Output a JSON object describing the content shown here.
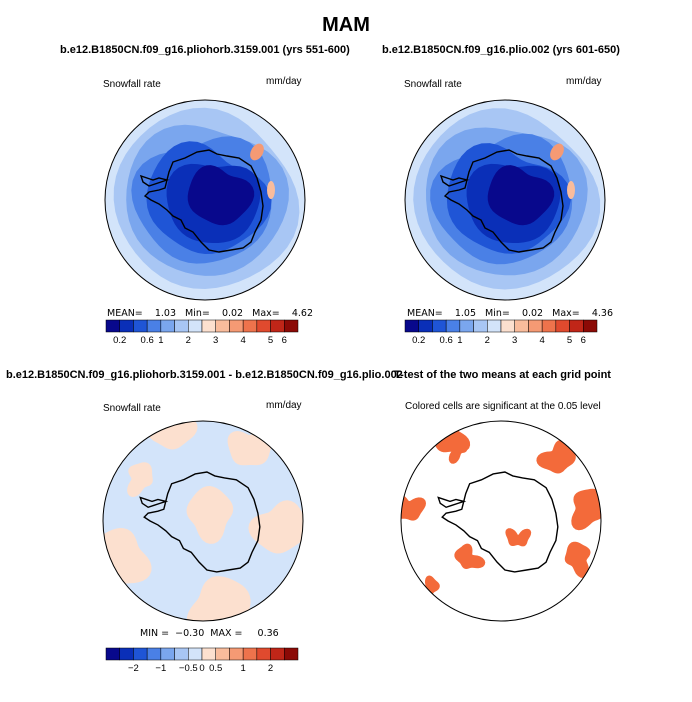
{
  "figure_title": "MAM",
  "panels": [
    {
      "title": "b.e12.B1850CN.f09_g16.pliohorb.3159.001 (yrs 551-600)",
      "left_label": "Snowfall rate",
      "right_label": "mm/day",
      "stats": "MEAN=    1.03   Min=    0.02   Max=    4.62"
    },
    {
      "title": "b.e12.B1850CN.f09_g16.plio.002 (yrs 601-650)",
      "left_label": "Snowfall rate",
      "right_label": "mm/day",
      "stats": "MEAN=    1.05   Min=    0.02   Max=    4.36"
    },
    {
      "title": "b.e12.B1850CN.f09_g16.pliohorb.3159.001 - b.e12.B1850CN.f09_g16.plio.002",
      "left_label": "Snowfall rate",
      "right_label": "mm/day",
      "stats": "MIN =  −0.30  MAX =     0.36"
    },
    {
      "title": "T-test of the two means at each grid point",
      "subtitle": "Colored cells are significant at the 0.05 level"
    }
  ],
  "colorbar_abs": {
    "colors": [
      "#08088c",
      "#0a2fb8",
      "#1f55d6",
      "#4a80e6",
      "#7aa6ee",
      "#a8c6f4",
      "#d3e4fa",
      "#fce0cf",
      "#f9bc9c",
      "#f59a74",
      "#ee734c",
      "#e04a2e",
      "#c02618",
      "#8c0a06"
    ],
    "ticks": [
      "0.2",
      "0.6",
      "1",
      "2",
      "3",
      "4",
      "5",
      "6"
    ],
    "tick_slots": [
      1,
      3,
      4,
      6,
      8,
      10,
      12,
      13
    ]
  },
  "colorbar_diff": {
    "colors": [
      "#08088c",
      "#0a2fb8",
      "#1f55d6",
      "#4a80e6",
      "#7aa6ee",
      "#a8c6f4",
      "#d3e4fa",
      "#fce0cf",
      "#f9bc9c",
      "#f59a74",
      "#ee734c",
      "#e04a2e",
      "#c02618",
      "#8c0a06"
    ],
    "ticks": [
      "−2",
      "−1",
      "−0.5",
      "0",
      "0.5",
      "1",
      "2"
    ],
    "tick_slots": [
      2,
      4,
      6,
      7,
      8,
      10,
      12
    ]
  },
  "colors": {
    "ocean_deep": "#0a2fb8",
    "ocean_mid": "#4a80e6",
    "ocean_light": "#a8c6f4",
    "ocean_pale": "#d3e4fa",
    "interior": "#08088c",
    "warm": "#f59a74",
    "diff_neg": "#d3e4fa",
    "diff_pos": "#fce0cf",
    "significant": "#f36a3a"
  }
}
